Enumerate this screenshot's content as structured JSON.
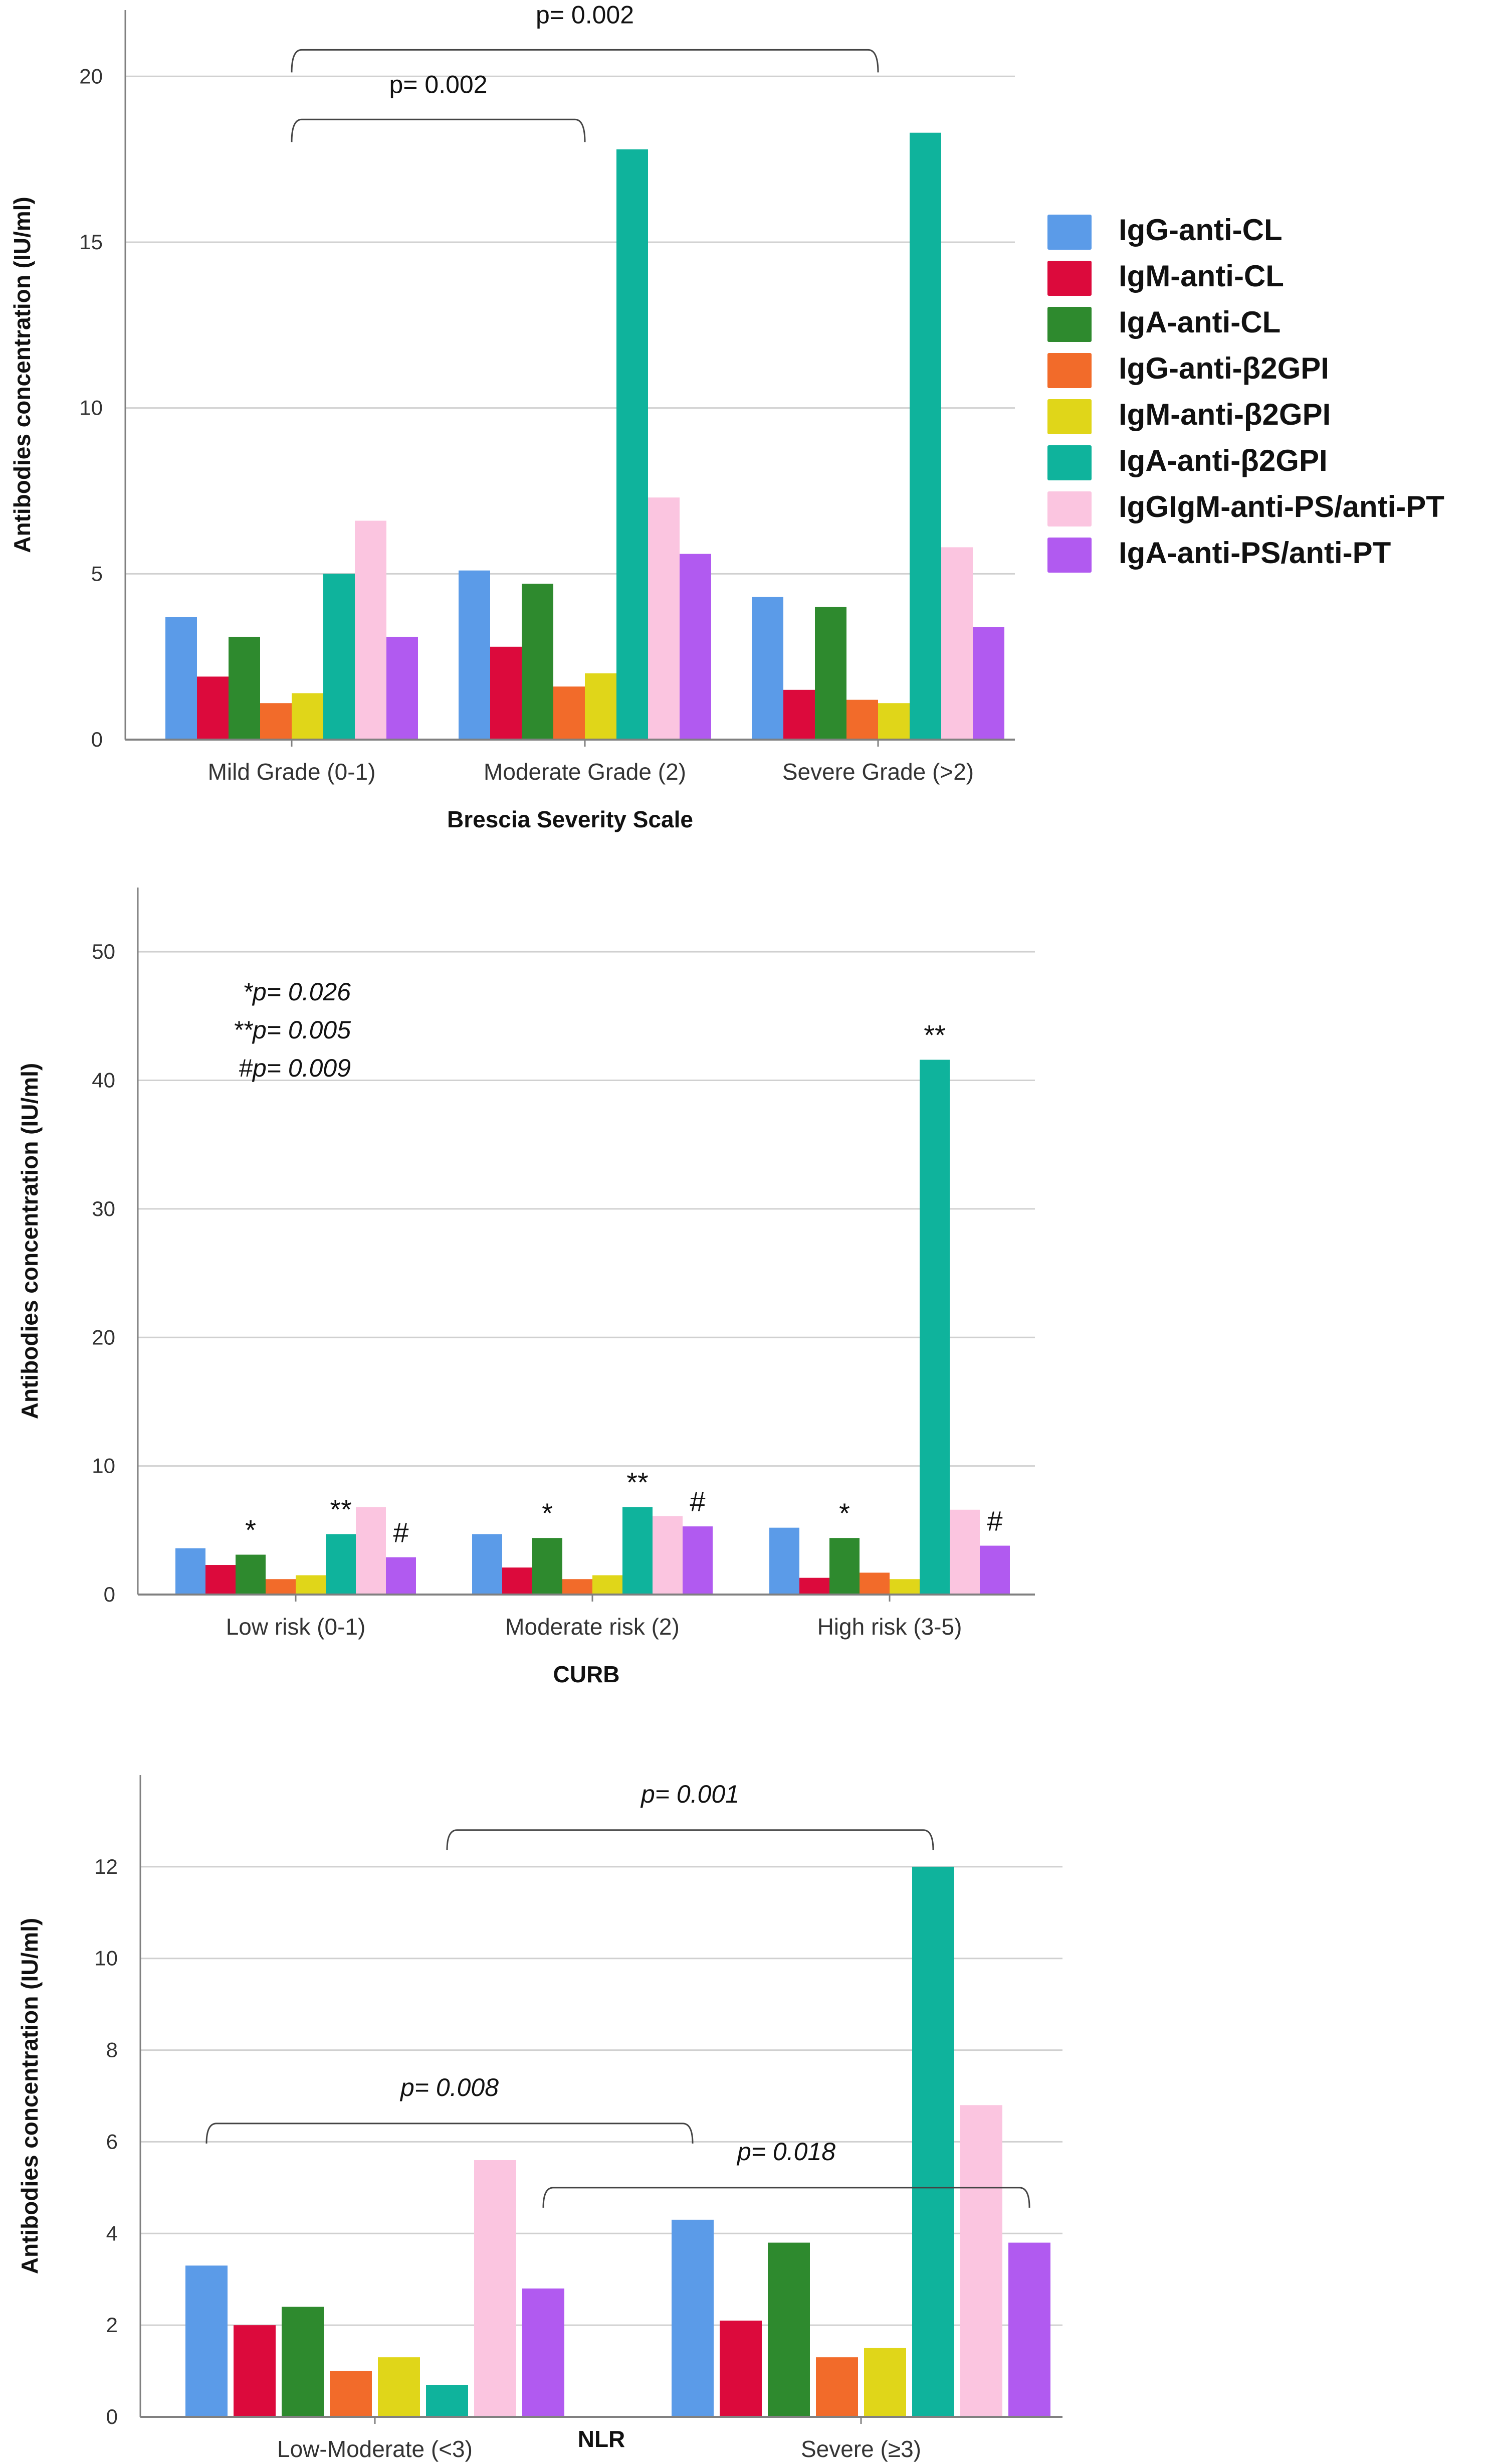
{
  "colors": {
    "series": [
      "#5b9be8",
      "#dc0a3c",
      "#2e8a2e",
      "#f26b2a",
      "#e0d619",
      "#0fb39c",
      "#fbc5e0",
      "#b15af0"
    ],
    "axis": "#808080",
    "grid": "#d0d0d0",
    "text": "#333333"
  },
  "legend": {
    "items": [
      "IgG-anti-CL",
      "IgM-anti-CL",
      "IgA-anti-CL",
      "IgG-anti-β2GPI",
      "IgM-anti-β2GPI",
      "IgA-anti-β2GPI",
      "IgGIgM-anti-PS/anti-PT",
      "IgA-anti-PS/anti-PT"
    ]
  },
  "chart_data": [
    {
      "type": "bar",
      "title": "",
      "xlabel": "Brescia Severity Scale",
      "ylabel": "Antibodies concentration (IU/ml)",
      "ylim": [
        0,
        22
      ],
      "yticks": [
        0,
        5,
        10,
        15,
        20
      ],
      "categories": [
        "Mild Grade (0-1)",
        "Moderate Grade (2)",
        "Severe Grade (>2)"
      ],
      "series": [
        {
          "name": "IgG-anti-CL",
          "values": [
            3.7,
            5.1,
            4.3
          ]
        },
        {
          "name": "IgM-anti-CL",
          "values": [
            1.9,
            2.8,
            1.5
          ]
        },
        {
          "name": "IgA-anti-CL",
          "values": [
            3.1,
            4.7,
            4.0
          ]
        },
        {
          "name": "IgG-anti-β2GPI",
          "values": [
            1.1,
            1.6,
            1.2
          ]
        },
        {
          "name": "IgM-anti-β2GPI",
          "values": [
            1.4,
            2.0,
            1.1
          ]
        },
        {
          "name": "IgA-anti-β2GPI",
          "values": [
            5.0,
            17.8,
            18.3
          ]
        },
        {
          "name": "IgGIgM-anti-PS/anti-PT",
          "values": [
            6.6,
            7.3,
            5.8
          ]
        },
        {
          "name": "IgA-anti-PS/anti-PT",
          "values": [
            3.1,
            5.6,
            3.4
          ]
        }
      ],
      "annotations": [
        {
          "type": "bracket",
          "label": "p= 0.002",
          "from_group": 0,
          "to_group": 2,
          "y": 20.8,
          "label_y": 21.6
        },
        {
          "type": "bracket",
          "label": "p= 0.002",
          "from_group": 0,
          "to_group": 1,
          "y": 18.7,
          "label_y": 19.5
        }
      ],
      "notes": []
    },
    {
      "type": "bar",
      "title": "",
      "xlabel": "CURB",
      "ylabel": "Antibodies concentration (IU/ml)",
      "ylim": [
        0,
        55
      ],
      "yticks": [
        0,
        10,
        20,
        30,
        40,
        50
      ],
      "categories": [
        "Low risk (0-1)",
        "Moderate risk (2)",
        "High risk (3-5)"
      ],
      "series": [
        {
          "name": "IgG-anti-CL",
          "values": [
            3.6,
            4.7,
            5.2
          ]
        },
        {
          "name": "IgM-anti-CL",
          "values": [
            2.3,
            2.1,
            1.3
          ]
        },
        {
          "name": "IgA-anti-CL",
          "values": [
            3.1,
            4.4,
            4.4
          ]
        },
        {
          "name": "IgG-anti-β2GPI",
          "values": [
            1.2,
            1.2,
            1.7
          ]
        },
        {
          "name": "IgM-anti-β2GPI",
          "values": [
            1.5,
            1.5,
            1.2
          ]
        },
        {
          "name": "IgA-anti-β2GPI",
          "values": [
            4.7,
            6.8,
            41.6
          ]
        },
        {
          "name": "IgGIgM-anti-PS/anti-PT",
          "values": [
            6.8,
            6.1,
            6.6
          ]
        },
        {
          "name": "IgA-anti-PS/anti-PT",
          "values": [
            2.9,
            5.3,
            3.8
          ]
        }
      ],
      "annotations": [
        {
          "type": "mark",
          "label": "*",
          "group": 0,
          "series": 2
        },
        {
          "type": "mark",
          "label": "**",
          "group": 0,
          "series": 5
        },
        {
          "type": "mark",
          "label": "#",
          "group": 0,
          "series": 7
        },
        {
          "type": "mark",
          "label": "*",
          "group": 1,
          "series": 2
        },
        {
          "type": "mark",
          "label": "**",
          "group": 1,
          "series": 5
        },
        {
          "type": "mark",
          "label": "#",
          "group": 1,
          "series": 7
        },
        {
          "type": "mark",
          "label": "*",
          "group": 2,
          "series": 2
        },
        {
          "type": "mark",
          "label": "**",
          "group": 2,
          "series": 5
        },
        {
          "type": "mark",
          "label": "#",
          "group": 2,
          "series": 7
        }
      ],
      "notes": [
        "*p= 0.026",
        "**p= 0.005",
        "#p= 0.009"
      ]
    },
    {
      "type": "bar",
      "title": "",
      "xlabel": "NLR",
      "ylabel": "Antibodies concentration (IU/ml)",
      "ylim": [
        0,
        14
      ],
      "yticks": [
        0,
        2,
        4,
        6,
        8,
        10,
        12
      ],
      "categories": [
        "Low-Moderate (<3)",
        "Severe (≥3)"
      ],
      "series": [
        {
          "name": "IgG-anti-CL",
          "values": [
            3.3,
            4.3
          ]
        },
        {
          "name": "IgM-anti-CL",
          "values": [
            2.0,
            2.1
          ]
        },
        {
          "name": "IgA-anti-CL",
          "values": [
            2.4,
            3.8
          ]
        },
        {
          "name": "IgG-anti-β2GPI",
          "values": [
            1.0,
            1.3
          ]
        },
        {
          "name": "IgM-anti-β2GPI",
          "values": [
            1.3,
            1.5
          ]
        },
        {
          "name": "IgA-anti-β2GPI",
          "values": [
            0.7,
            12.0
          ]
        },
        {
          "name": "IgGIgM-anti-PS/anti-PT",
          "values": [
            5.6,
            6.8
          ]
        },
        {
          "name": "IgA-anti-PS/anti-PT",
          "values": [
            2.8,
            3.8
          ]
        }
      ],
      "annotations": [
        {
          "type": "bracket",
          "label": "p= 0.001",
          "from": [
            0,
            5
          ],
          "to": [
            1,
            5
          ],
          "y": 12.8,
          "label_y": 13.4
        },
        {
          "type": "bracket",
          "label": "p= 0.008",
          "from": [
            0,
            0
          ],
          "to": [
            1,
            0
          ],
          "y": 6.4,
          "label_y": 7.0
        },
        {
          "type": "bracket",
          "label": "p= 0.018",
          "from": [
            0,
            7
          ],
          "to": [
            1,
            7
          ],
          "y": 5.0,
          "label_y": 5.6
        }
      ],
      "notes": []
    }
  ]
}
